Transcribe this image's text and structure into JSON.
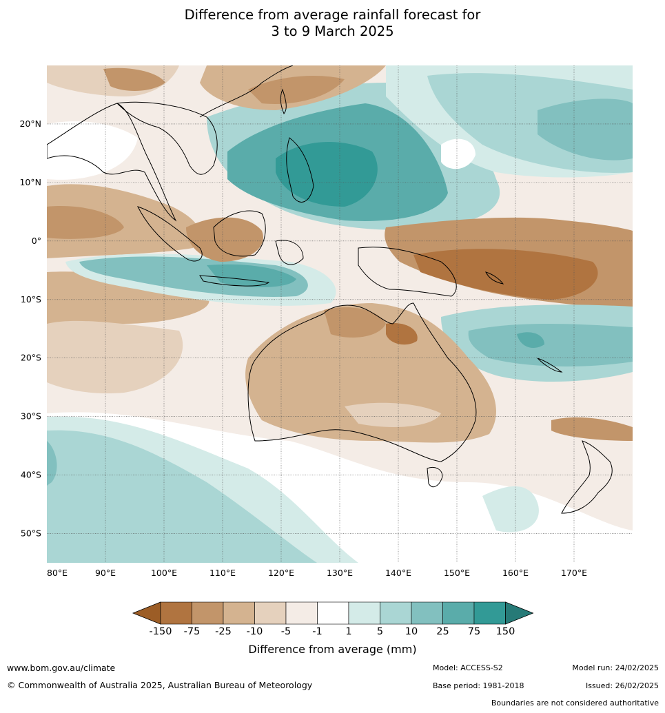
{
  "title_line1": "Difference from average rainfall forecast for",
  "title_line2": "3 to 9 March 2025",
  "map": {
    "lon_range": [
      80,
      180
    ],
    "lat_range": [
      -55,
      30
    ],
    "lon_ticks": [
      "80°E",
      "90°E",
      "100°E",
      "110°E",
      "120°E",
      "130°E",
      "140°E",
      "150°E",
      "160°E",
      "170°E"
    ],
    "lat_ticks": [
      "20°N",
      "10°N",
      "0°",
      "10°S",
      "20°S",
      "30°S",
      "40°S",
      "50°S"
    ],
    "gridlines": true
  },
  "legend": {
    "label": "Difference from average (mm)",
    "ticks": [
      "-150",
      "-75",
      "-25",
      "-10",
      "-5",
      "-1",
      "1",
      "5",
      "10",
      "25",
      "75",
      "150"
    ],
    "colors": [
      "#9c5d26",
      "#b07440",
      "#c2956a",
      "#d4b390",
      "#e5d1bd",
      "#f4ece6",
      "#ffffff",
      "#d4ebe8",
      "#aad6d4",
      "#82c0bf",
      "#5aacaa",
      "#329a96",
      "#267a77"
    ]
  },
  "footer": {
    "url": "www.bom.gov.au/climate",
    "copyright": "© Commonwealth of Australia 2025, Australian Bureau of Meteorology",
    "model": "Model: ACCESS-S2",
    "base_period": "Base period: 1981-2018",
    "model_run": "Model run: 24/02/2025",
    "issued": "Issued: 26/02/2025",
    "disclaimer": "Boundaries are not considered authoritative"
  }
}
